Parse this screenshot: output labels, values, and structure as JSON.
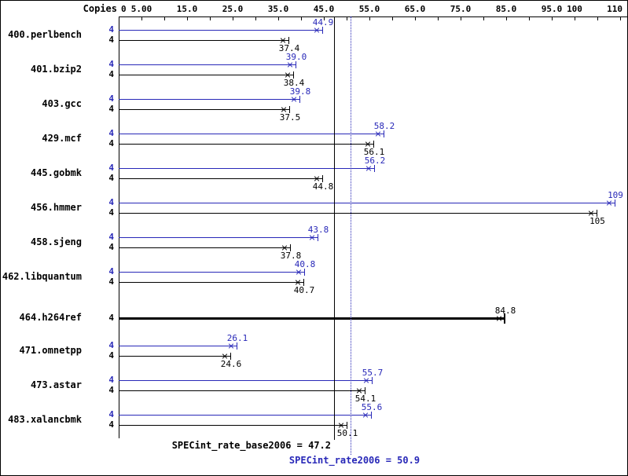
{
  "colors": {
    "peak": "#2828b8",
    "base": "#000000",
    "background": "#ffffff"
  },
  "chart_data": {
    "type": "bar",
    "orientation": "horizontal",
    "title": "",
    "xlabel": "",
    "ylabel": "",
    "copies_column_header": "Copies",
    "series_names": [
      "peak",
      "base"
    ],
    "x_axis": {
      "min": 0,
      "max": 110,
      "tick_step": 5,
      "tick_labels": [
        {
          "value": 0,
          "text": "0"
        },
        {
          "value": 5,
          "text": "5.00"
        },
        {
          "value": 15,
          "text": "15.0"
        },
        {
          "value": 25,
          "text": "25.0"
        },
        {
          "value": 35,
          "text": "35.0"
        },
        {
          "value": 45,
          "text": "45.0"
        },
        {
          "value": 55,
          "text": "55.0"
        },
        {
          "value": 65,
          "text": "65.0"
        },
        {
          "value": 75,
          "text": "75.0"
        },
        {
          "value": 85,
          "text": "85.0"
        },
        {
          "value": 95,
          "text": "95.0"
        },
        {
          "value": 100,
          "text": "100"
        },
        {
          "value": 110,
          "text": "110"
        }
      ]
    },
    "groups": [
      {
        "name": "400.perlbench",
        "rows": [
          {
            "series": "peak",
            "copies": 4,
            "value": 44.9,
            "display": "44.9"
          },
          {
            "series": "base",
            "copies": 4,
            "value": 37.4,
            "display": "37.4"
          }
        ]
      },
      {
        "name": "401.bzip2",
        "rows": [
          {
            "series": "peak",
            "copies": 4,
            "value": 39.0,
            "display": "39.0"
          },
          {
            "series": "base",
            "copies": 4,
            "value": 38.4,
            "display": "38.4"
          }
        ]
      },
      {
        "name": "403.gcc",
        "rows": [
          {
            "series": "peak",
            "copies": 4,
            "value": 39.8,
            "display": "39.8"
          },
          {
            "series": "base",
            "copies": 4,
            "value": 37.5,
            "display": "37.5"
          }
        ]
      },
      {
        "name": "429.mcf",
        "rows": [
          {
            "series": "peak",
            "copies": 4,
            "value": 58.2,
            "display": "58.2"
          },
          {
            "series": "base",
            "copies": 4,
            "value": 56.1,
            "display": "56.1"
          }
        ]
      },
      {
        "name": "445.gobmk",
        "rows": [
          {
            "series": "peak",
            "copies": 4,
            "value": 56.2,
            "display": "56.2"
          },
          {
            "series": "base",
            "copies": 4,
            "value": 44.8,
            "display": "44.8"
          }
        ]
      },
      {
        "name": "456.hmmer",
        "rows": [
          {
            "series": "peak",
            "copies": 4,
            "value": 109,
            "display": "109"
          },
          {
            "series": "base",
            "copies": 4,
            "value": 105,
            "display": "105"
          }
        ]
      },
      {
        "name": "458.sjeng",
        "rows": [
          {
            "series": "peak",
            "copies": 4,
            "value": 43.8,
            "display": "43.8"
          },
          {
            "series": "base",
            "copies": 4,
            "value": 37.8,
            "display": "37.8"
          }
        ]
      },
      {
        "name": "462.libquantum",
        "rows": [
          {
            "series": "peak",
            "copies": 4,
            "value": 40.8,
            "display": "40.8"
          },
          {
            "series": "base",
            "copies": 4,
            "value": 40.7,
            "display": "40.7"
          }
        ]
      },
      {
        "name": "464.h264ref",
        "rows": [
          {
            "series": "base",
            "copies": 4,
            "value": 84.8,
            "display": "84.8",
            "bold": true
          }
        ]
      },
      {
        "name": "471.omnetpp",
        "rows": [
          {
            "series": "peak",
            "copies": 4,
            "value": 26.1,
            "display": "26.1"
          },
          {
            "series": "base",
            "copies": 4,
            "value": 24.6,
            "display": "24.6"
          }
        ]
      },
      {
        "name": "473.astar",
        "rows": [
          {
            "series": "peak",
            "copies": 4,
            "value": 55.7,
            "display": "55.7"
          },
          {
            "series": "base",
            "copies": 4,
            "value": 54.1,
            "display": "54.1"
          }
        ]
      },
      {
        "name": "483.xalancbmk",
        "rows": [
          {
            "series": "peak",
            "copies": 4,
            "value": 55.6,
            "display": "55.6"
          },
          {
            "series": "base",
            "copies": 4,
            "value": 50.1,
            "display": "50.1"
          }
        ]
      }
    ],
    "reference_lines": [
      {
        "name": "base",
        "value": 47.2,
        "style": "solid",
        "color": "#000000",
        "label": "SPECint_rate_base2006 = 47.2"
      },
      {
        "name": "peak",
        "value": 50.9,
        "style": "dotted",
        "color": "#2828b8",
        "label": "SPECint_rate2006 = 50.9"
      }
    ]
  }
}
